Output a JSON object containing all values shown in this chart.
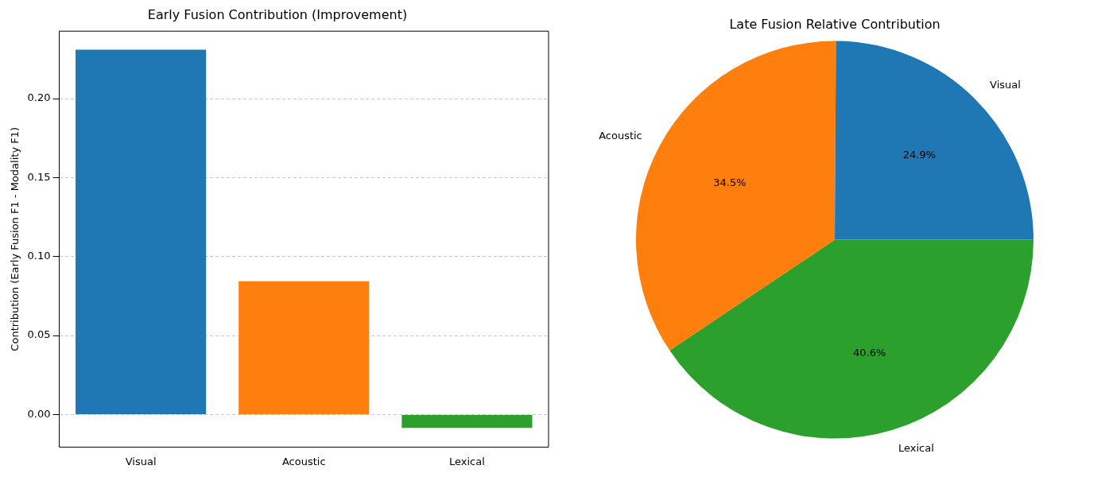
{
  "chart_data": [
    {
      "type": "bar",
      "title": "Early Fusion Contribution (Improvement)",
      "ylabel": "Contribution (Early Fusion F1 - Modality F1)",
      "categories": [
        "Visual",
        "Acoustic",
        "Lexical"
      ],
      "values": [
        0.231,
        0.0844,
        -0.0085
      ],
      "colors": [
        "#1f77b4",
        "#ff7f0e",
        "#2ca02c"
      ],
      "ylim": [
        -0.0206,
        0.2427
      ],
      "yticks": [
        {
          "value": 0,
          "label": "0.00"
        },
        {
          "value": 0.05,
          "label": "0.05"
        },
        {
          "value": 0.1,
          "label": "0.10"
        },
        {
          "value": 0.15,
          "label": "0.15"
        },
        {
          "value": 0.2,
          "label": "0.20"
        }
      ],
      "grid": "y",
      "legend": false
    },
    {
      "type": "pie",
      "title": "Late Fusion Relative Contribution",
      "categories": [
        "Visual",
        "Acoustic",
        "Lexical"
      ],
      "values": [
        24.9,
        34.5,
        40.6
      ],
      "colors": [
        "#1f77b4",
        "#ff7f0e",
        "#2ca02c"
      ],
      "value_labels": [
        "24.9%",
        "34.5%",
        "40.6%"
      ],
      "legend": false
    }
  ]
}
